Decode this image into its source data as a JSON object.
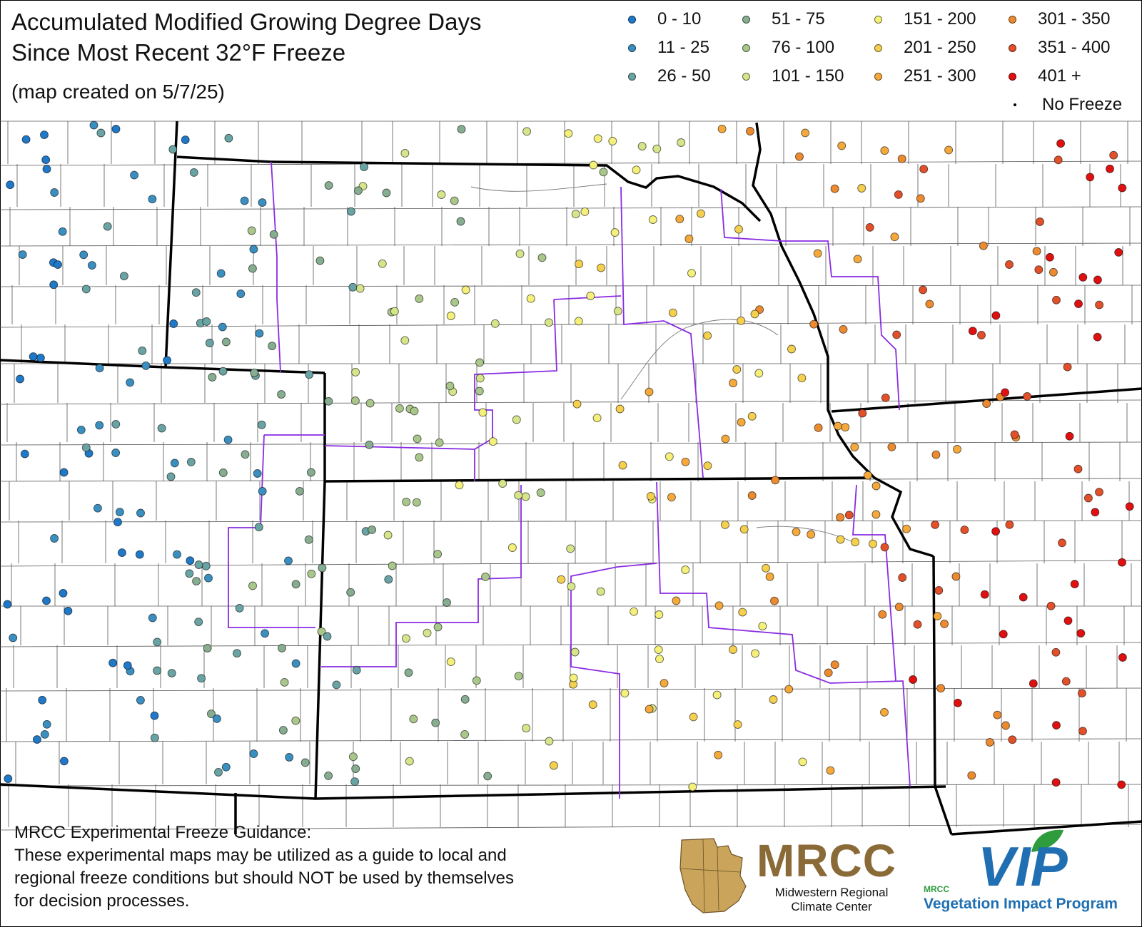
{
  "title_line1": "Accumulated Modified Growing Degree Days",
  "title_line2": "Since Most Recent 32°F Freeze",
  "subtitle": "(map created on 5/7/25)",
  "legend": [
    {
      "label": "0 - 10",
      "color": "#1f78c8"
    },
    {
      "label": "11 - 25",
      "color": "#3a8fc0"
    },
    {
      "label": "26 - 50",
      "color": "#6aa3a3"
    },
    {
      "label": "51 - 75",
      "color": "#86ad8f"
    },
    {
      "label": "76 - 100",
      "color": "#a9c78a"
    },
    {
      "label": "101 - 150",
      "color": "#d6e58a"
    },
    {
      "label": "151 - 200",
      "color": "#f4f07a"
    },
    {
      "label": "201 - 250",
      "color": "#f4d04e"
    },
    {
      "label": "251 - 300",
      "color": "#f5a93b"
    },
    {
      "label": "301 - 350",
      "color": "#ec8a2f"
    },
    {
      "label": "351 - 400",
      "color": "#e2502a"
    },
    {
      "label": "401 +",
      "color": "#e01010"
    },
    {
      "label": "No Freeze",
      "color": "#000000"
    }
  ],
  "note_lines": [
    "MRCC Experimental Freeze Guidance:",
    "These experimental maps may be utilized as a guide to local and",
    "regional freeze conditions but should NOT be used by themselves",
    "for decision processes."
  ],
  "mrcc_logo": {
    "word": "MRCC",
    "sub1": "Midwestern Regional",
    "sub2": "Climate Center",
    "color": "#8a6a37"
  },
  "vip_logo": {
    "word": "VIP",
    "small": "MRCC",
    "sub": "Vegetation Impact Program",
    "color": "#1f6fb2",
    "leaf_color": "#2e9b3d"
  }
}
